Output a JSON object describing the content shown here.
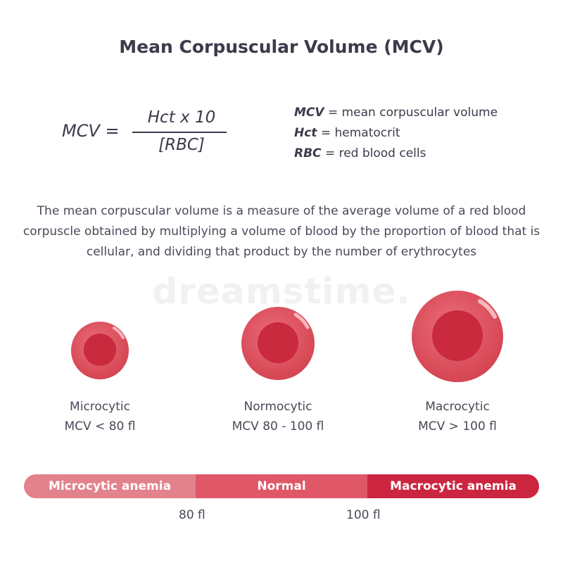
{
  "title": "Mean Corpuscular Volume (MCV)",
  "formula": {
    "lhs": "MCV =",
    "numerator": "Hct x 10",
    "denominator": "[RBC]"
  },
  "definitions": [
    {
      "term": "MCV",
      "meaning": "= mean corpuscular volume"
    },
    {
      "term": "Hct",
      "meaning": "= hematocrit"
    },
    {
      "term": "RBC",
      "meaning": "= red blood cells"
    }
  ],
  "description": "The mean corpuscular volume is a measure of the average volume of a red blood corpuscle obtained by multiplying a volume of blood by the proportion of blood that is cellular, and dividing that product by the number of erythrocytes",
  "watermark": "dreamstime.",
  "cells": [
    {
      "name": "Microcytic",
      "range": "MCV < 80 fl"
    },
    {
      "name": "Normocytic",
      "range": "MCV 80 - 100 fl"
    },
    {
      "name": "Macrocytic",
      "range": "MCV > 100 fl"
    }
  ],
  "scale": {
    "segments": [
      "Microcytic anemia",
      "Normal",
      "Macrocytic anemia"
    ],
    "ticks": [
      "80 fl",
      "100 fl"
    ]
  },
  "colors": {
    "cell_outer": "#e0505e",
    "cell_inner": "#cc2a3e",
    "text": "#3d3a4b"
  }
}
